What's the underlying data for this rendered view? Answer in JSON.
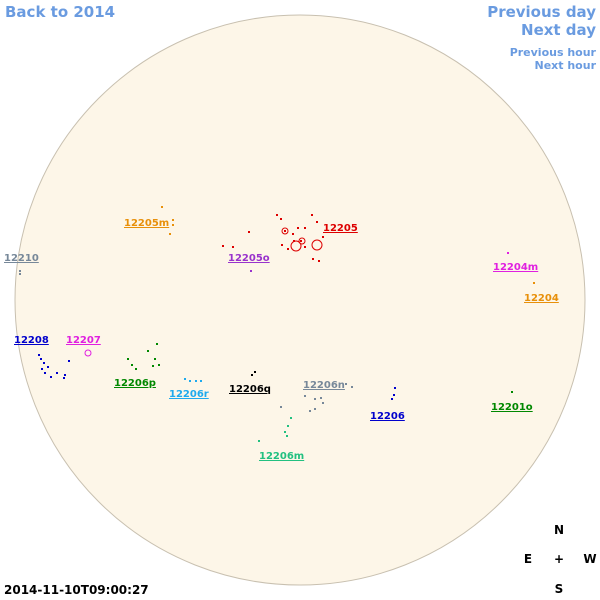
{
  "nav": {
    "back": "Back to 2014",
    "previous_day": "Previous day",
    "next_day": "Next day",
    "previous_hour": "Previous hour",
    "next_hour": "Next hour"
  },
  "regions": [
    "12205m",
    "12205",
    "12210",
    "12205o",
    "12204m",
    "12204",
    "12208",
    "12207",
    "12206p",
    "12206r",
    "12206q",
    "12206n",
    "12206",
    "12201o",
    "12206m"
  ],
  "compass": {
    "north": "N",
    "east": "E",
    "center": "+",
    "west": "W",
    "south": "S"
  },
  "timestamp": "2014-11-10T09:00:27"
}
